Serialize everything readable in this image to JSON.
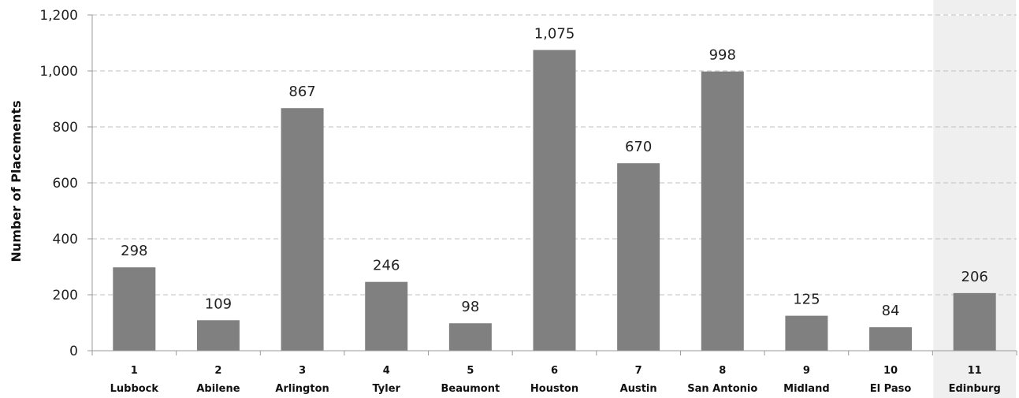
{
  "chart_data": {
    "type": "bar",
    "ylabel": "Number of Placements",
    "xlabel": "",
    "ylim": [
      0,
      1200
    ],
    "yticks": [
      0,
      200,
      400,
      600,
      800,
      1000,
      1200
    ],
    "ytick_labels": [
      "0",
      "200",
      "400",
      "600",
      "800",
      "1,000",
      "1,200"
    ],
    "grid": "horizontal dashed",
    "highlighted_category_index": 10,
    "categories": [
      {
        "number": "1",
        "name": "Lubbock"
      },
      {
        "number": "2",
        "name": "Abilene"
      },
      {
        "number": "3",
        "name": "Arlington"
      },
      {
        "number": "4",
        "name": "Tyler"
      },
      {
        "number": "5",
        "name": "Beaumont"
      },
      {
        "number": "6",
        "name": "Houston"
      },
      {
        "number": "7",
        "name": "Austin"
      },
      {
        "number": "8",
        "name": "San Antonio"
      },
      {
        "number": "9",
        "name": "Midland"
      },
      {
        "number": "10",
        "name": "El Paso"
      },
      {
        "number": "11",
        "name": "Edinburg"
      }
    ],
    "values": [
      298,
      109,
      867,
      246,
      98,
      1075,
      670,
      998,
      125,
      84,
      206
    ],
    "value_labels": [
      "298",
      "109",
      "867",
      "246",
      "98",
      "1,075",
      "670",
      "998",
      "125",
      "84",
      "206"
    ],
    "colors": {
      "bar": "#808080",
      "highlight_background": "#efefef",
      "grid": "#bfbfbf",
      "axis": "#999999"
    }
  }
}
